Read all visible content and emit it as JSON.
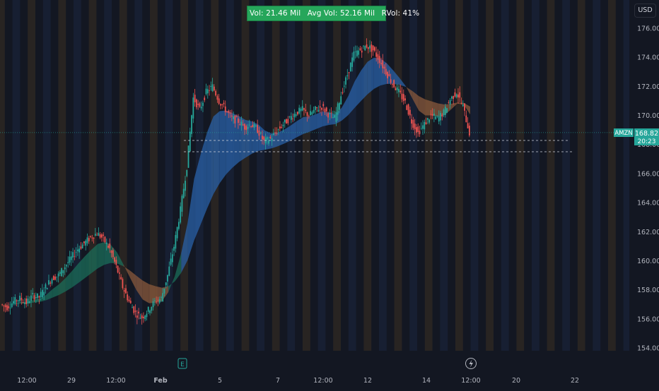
{
  "header": {
    "vol_label": "Vol: 21.46 Mil",
    "avg_vol_label": "Avg Vol: 52.16 Mil",
    "rvol_label": "RVol: 41%",
    "currency_button": "USD"
  },
  "symbol": {
    "ticker": "AMZN",
    "last_price": "168.82",
    "countdown": "20:23"
  },
  "colors": {
    "background": "#131722",
    "up": "#26a69a",
    "down": "#ef5350",
    "ribbon_up": "#1b6e5a",
    "ribbon_down": "#8a5a3c",
    "ribbon_blue": "#2962a8",
    "session_orange": "#3a2f22",
    "session_blue": "#1c2740",
    "price_label": "#26a69a",
    "axis_text": "#b2b5be"
  },
  "events": {
    "earnings_icon": "E",
    "dividend_icon": "flash-icon"
  },
  "chart_data": {
    "type": "line",
    "title": "",
    "ylim": [
      153,
      177
    ],
    "y_ticks": [
      "154.00",
      "156.00",
      "158.00",
      "160.00",
      "162.00",
      "164.00",
      "166.00",
      "168.00",
      "170.00",
      "172.00",
      "174.00",
      "176.00"
    ],
    "x_ticks": [
      "12:00",
      "29",
      "12:00",
      "Feb",
      "5",
      "7",
      "12:00",
      "12",
      "14",
      "12:00",
      "20",
      "22"
    ],
    "series": [
      {
        "values": [
          157.0,
          156.8,
          157.2,
          157.4,
          157.1,
          157.6,
          157.5,
          158.2,
          158.8,
          159.0,
          159.6,
          160.2,
          160.8,
          161.2,
          161.6,
          161.9,
          161.5,
          160.8,
          159.6,
          158.2,
          157.2,
          156.4,
          156.1,
          156.6,
          157.2,
          157.4,
          159.0,
          161.0,
          163.5,
          166.5,
          171.2,
          170.4,
          171.6,
          172.0,
          171.0,
          170.4,
          169.8,
          169.6,
          169.2,
          169.4,
          169.0,
          168.2,
          168.4,
          168.9,
          169.4,
          169.8,
          170.2,
          170.4,
          170.0,
          170.4,
          170.6,
          170.1,
          169.8,
          171.4,
          172.8,
          174.2,
          174.5,
          174.8,
          174.5,
          173.8,
          173.0,
          172.2,
          171.6,
          170.9,
          169.6,
          168.8,
          169.4,
          170.0,
          169.8,
          170.2,
          171.1,
          171.6,
          170.6,
          168.8
        ]
      }
    ]
  }
}
